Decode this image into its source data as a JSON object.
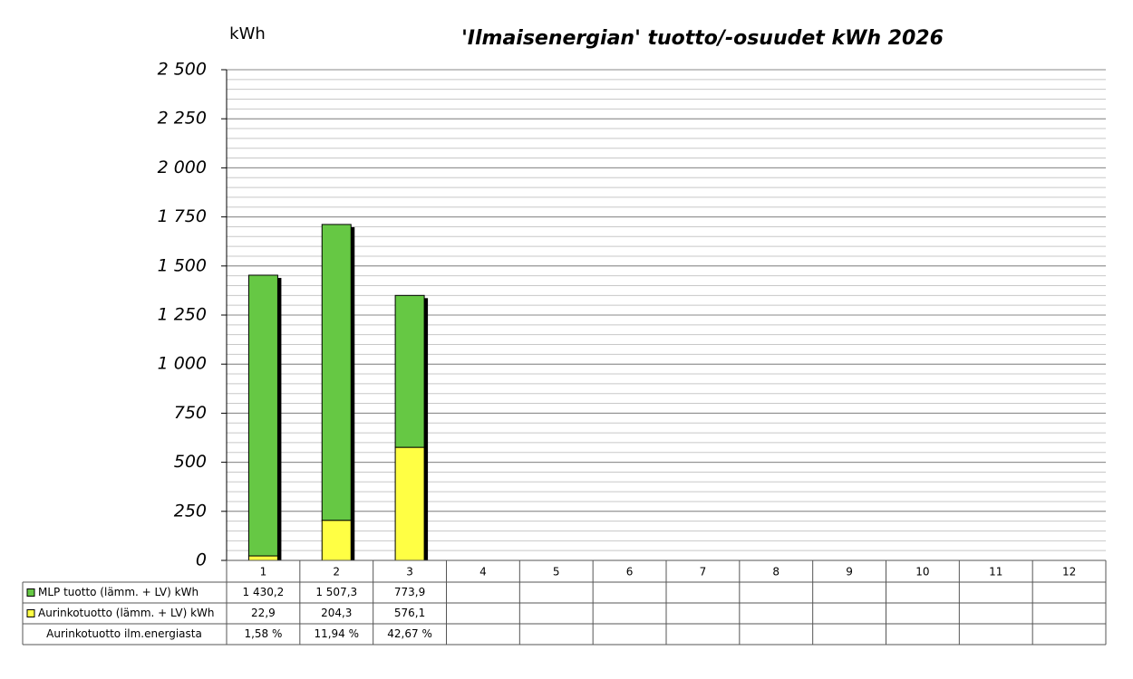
{
  "chart_data": {
    "type": "stacked_bar",
    "title": "'Ilmaisenergian' tuotto/-osuudet kWh 2026",
    "y_label": "kWh",
    "categories": [
      "1",
      "2",
      "3",
      "4",
      "5",
      "6",
      "7",
      "8",
      "9",
      "10",
      "11",
      "12"
    ],
    "series": [
      {
        "name": "MLP tuotto (lämm. + LV) kWh",
        "color": "#66c844",
        "values": [
          1430.2,
          1507.3,
          773.9,
          null,
          null,
          null,
          null,
          null,
          null,
          null,
          null,
          null
        ],
        "value_labels": [
          "1 430,2",
          "1 507,3",
          "773,9",
          null,
          null,
          null,
          null,
          null,
          null,
          null,
          null,
          null
        ]
      },
      {
        "name": "Aurinkotuotto (lämm. + LV) kWh",
        "color": "#ffff44",
        "values": [
          22.9,
          204.3,
          576.1,
          null,
          null,
          null,
          null,
          null,
          null,
          null,
          null,
          null
        ],
        "value_labels": [
          "22,9",
          "204,3",
          "576,1",
          null,
          null,
          null,
          null,
          null,
          null,
          null,
          null,
          null
        ]
      }
    ],
    "share": {
      "name": "Aurinkotuotto ilm.energiasta",
      "values": [
        1.58,
        11.94,
        42.67,
        null,
        null,
        null,
        null,
        null,
        null,
        null,
        null,
        null
      ],
      "value_labels": [
        "1,58 %",
        "11,94 %",
        "42,67 %",
        null,
        null,
        null,
        null,
        null,
        null,
        null,
        null,
        null
      ]
    },
    "ylim": [
      0,
      2500
    ],
    "yticks": [
      0,
      250,
      500,
      750,
      {
        "value": 1000,
        "label": "1 000"
      },
      {
        "value": 1250,
        "label": "1 250"
      },
      {
        "value": 1500,
        "label": "1 500"
      },
      {
        "value": 1750,
        "label": "1 750"
      },
      {
        "value": 2000,
        "label": "2 000"
      },
      {
        "value": 2250,
        "label": "2 250"
      },
      {
        "value": 2500,
        "label": "2 500"
      }
    ],
    "grid": true,
    "minor_grid_step": 50
  }
}
